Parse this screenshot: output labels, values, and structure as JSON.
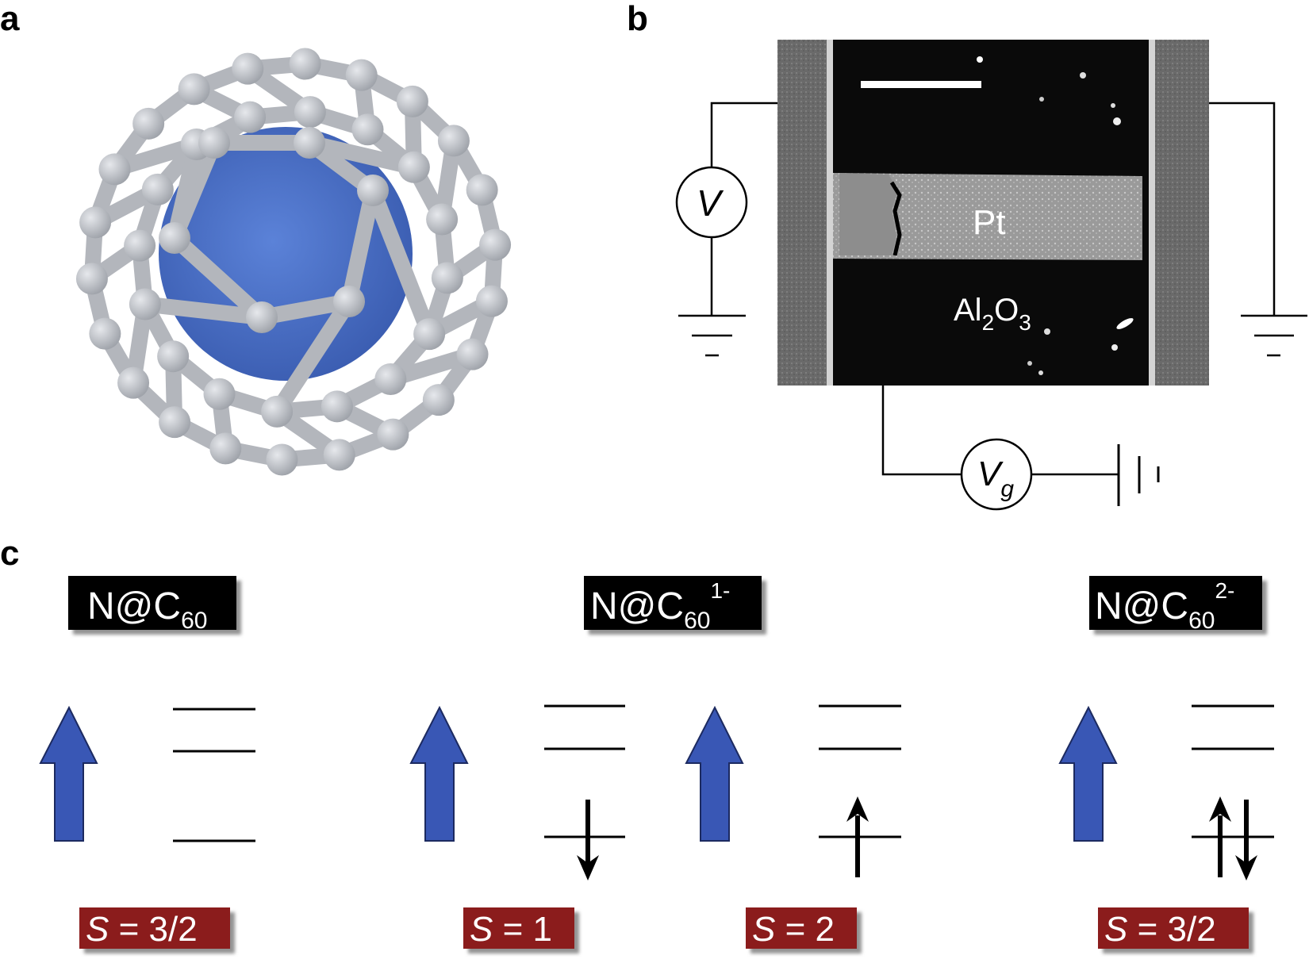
{
  "panels": {
    "a": {
      "letter": "a"
    },
    "b": {
      "letter": "b",
      "pt_label": "Pt",
      "oxide_main": "Al",
      "oxide_sub1": "2",
      "oxide_o": "O",
      "oxide_sub2": "3",
      "voltmeter_label": "V",
      "gate_label_main": "V",
      "gate_label_sub": "g",
      "ground_minus": "-"
    },
    "c": {
      "letter": "c",
      "species": [
        {
          "base": "N@C",
          "sub": "60",
          "sup": ""
        },
        {
          "base": "N@C",
          "sub": "60",
          "sup": "1-"
        },
        {
          "base": "N@C",
          "sub": "60",
          "sup": "2-"
        }
      ],
      "spins": [
        {
          "symbol": "S",
          "value": " = 3/2"
        },
        {
          "symbol": "S",
          "value": " = 1"
        },
        {
          "symbol": "S",
          "value": " = 2"
        },
        {
          "symbol": "S",
          "value": " = 3/2"
        }
      ]
    }
  },
  "colors": {
    "inner_atom": "#4a6fc8",
    "carbon_cage": "#b9bcc2",
    "spin_arrow": "#3957b5",
    "spin_label_bg": "#8b1a1a",
    "species_label_bg": "#000000"
  }
}
